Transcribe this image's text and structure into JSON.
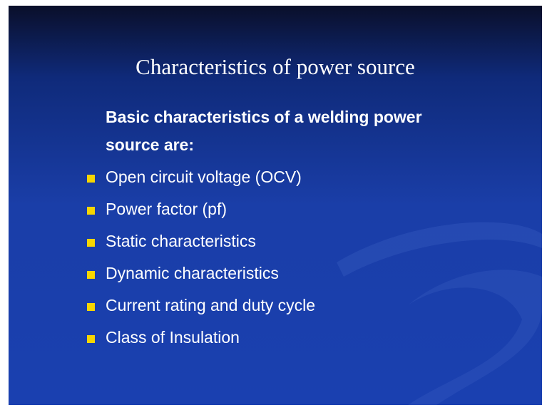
{
  "slide": {
    "title": "Characteristics of power source",
    "intro": [
      "Basic characteristics of a welding power",
      "source are:"
    ],
    "bullets": [
      "Open circuit voltage (OCV)",
      "Power factor (pf)",
      "Static characteristics",
      "Dynamic characteristics",
      "Current rating and duty cycle",
      "Class of Insulation"
    ]
  }
}
